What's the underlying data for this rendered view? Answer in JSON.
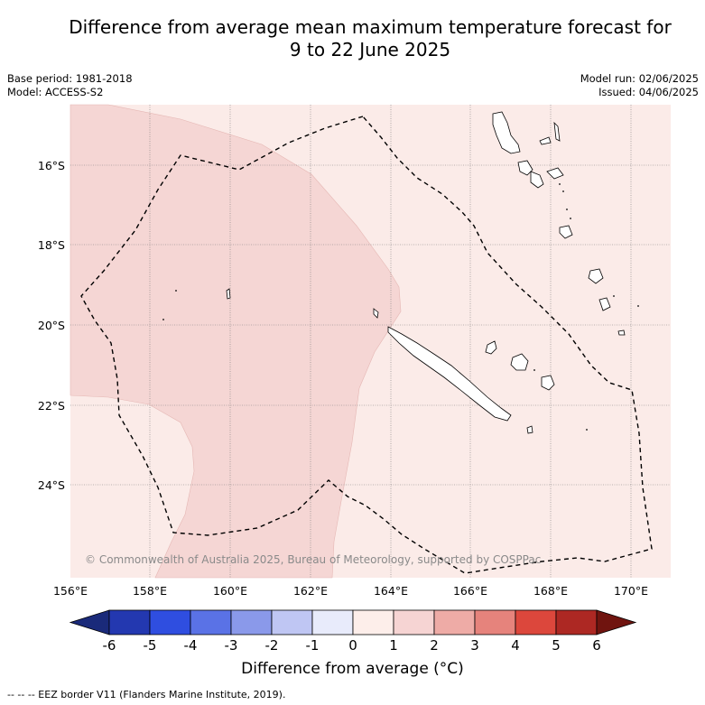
{
  "title_line1": "Difference from average mean maximum temperature forecast for",
  "title_line2": "9 to 22 June 2025",
  "meta": {
    "base_period": "Base period: 1981-2018",
    "model": "Model: ACCESS-S2",
    "model_run": "Model run: 02/06/2025",
    "issued": "Issued: 04/06/2025"
  },
  "map": {
    "lat_labels": [
      "16°S",
      "18°S",
      "20°S",
      "22°S",
      "24°S"
    ],
    "lon_labels": [
      "156°E",
      "158°E",
      "160°E",
      "162°E",
      "164°E",
      "166°E",
      "168°E",
      "170°E"
    ],
    "copyright": "© Commonwealth of Australia 2025, Bureau of Meteorology, supported by COSPPac",
    "colors": {
      "light_warm": "#fbebe8",
      "warm": "#f5d6d4",
      "eez": "#000000"
    }
  },
  "colorbar": {
    "ticks": [
      "-6",
      "-5",
      "-4",
      "-3",
      "-2",
      "-1",
      "0",
      "1",
      "2",
      "3",
      "4",
      "5",
      "6"
    ],
    "colors": [
      "#1a2a7a",
      "#2338b0",
      "#2f4ee0",
      "#5a72e6",
      "#8a99ea",
      "#bfc6f3",
      "#e8ebfb",
      "#fdeeea",
      "#f6d4d3",
      "#eeaba6",
      "#e6837c",
      "#dc473c",
      "#ad2823",
      "#70140f"
    ],
    "label": "Difference from average (°C)"
  },
  "legend": {
    "eez_note": "--  --  -- EEZ border V11 (Flanders Marine Institute, 2019)."
  }
}
